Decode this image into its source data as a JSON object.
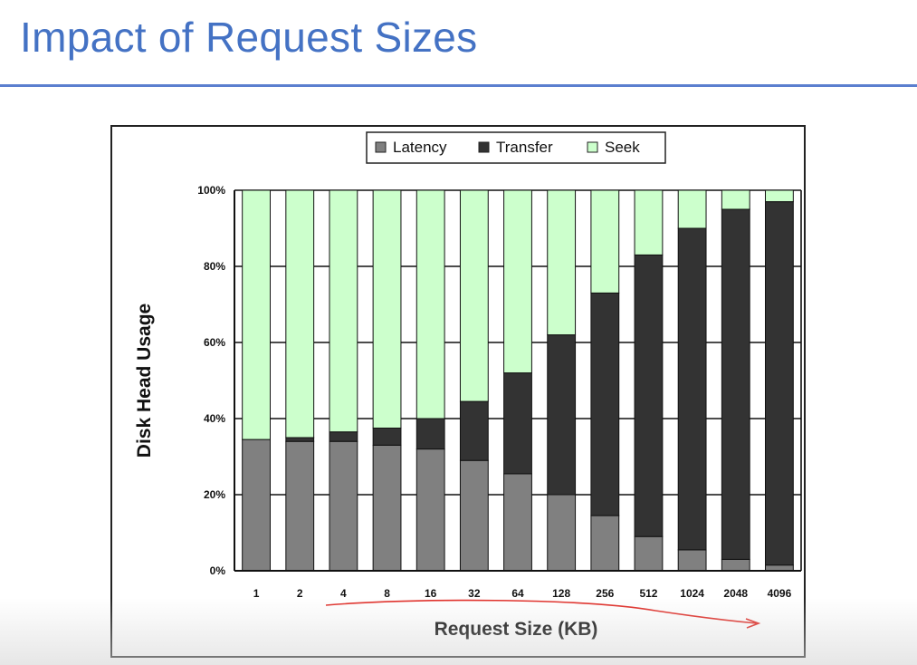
{
  "slide": {
    "title": "Impact of Request Sizes"
  },
  "colors": {
    "title": "#4472c4",
    "latency": "#808080",
    "transfer": "#333333",
    "seek": "#ccffcc",
    "annotation": "#e0302a"
  },
  "chart_data": {
    "type": "bar",
    "stacked": true,
    "xlabel": "Request Size (KB)",
    "ylabel": "Disk Head Usage",
    "ylim": [
      0,
      100
    ],
    "yticks": [
      "0%",
      "20%",
      "40%",
      "60%",
      "80%",
      "100%"
    ],
    "grid": true,
    "legend_position": "top-center",
    "categories": [
      "1",
      "2",
      "4",
      "8",
      "16",
      "32",
      "64",
      "128",
      "256",
      "512",
      "1024",
      "2048",
      "4096"
    ],
    "series": [
      {
        "name": "Latency",
        "values": [
          34.5,
          34,
          34,
          33,
          32,
          29,
          25.5,
          20,
          14.5,
          9,
          5.5,
          3,
          1.5
        ]
      },
      {
        "name": "Transfer",
        "values": [
          0,
          1,
          2.5,
          4.5,
          8,
          15.5,
          26.5,
          42,
          58.5,
          74,
          84.5,
          92,
          95.5
        ]
      },
      {
        "name": "Seek",
        "values": [
          65.5,
          65,
          63.5,
          62.5,
          60,
          55.5,
          48,
          38,
          27,
          17,
          10,
          5,
          3
        ]
      }
    ]
  }
}
